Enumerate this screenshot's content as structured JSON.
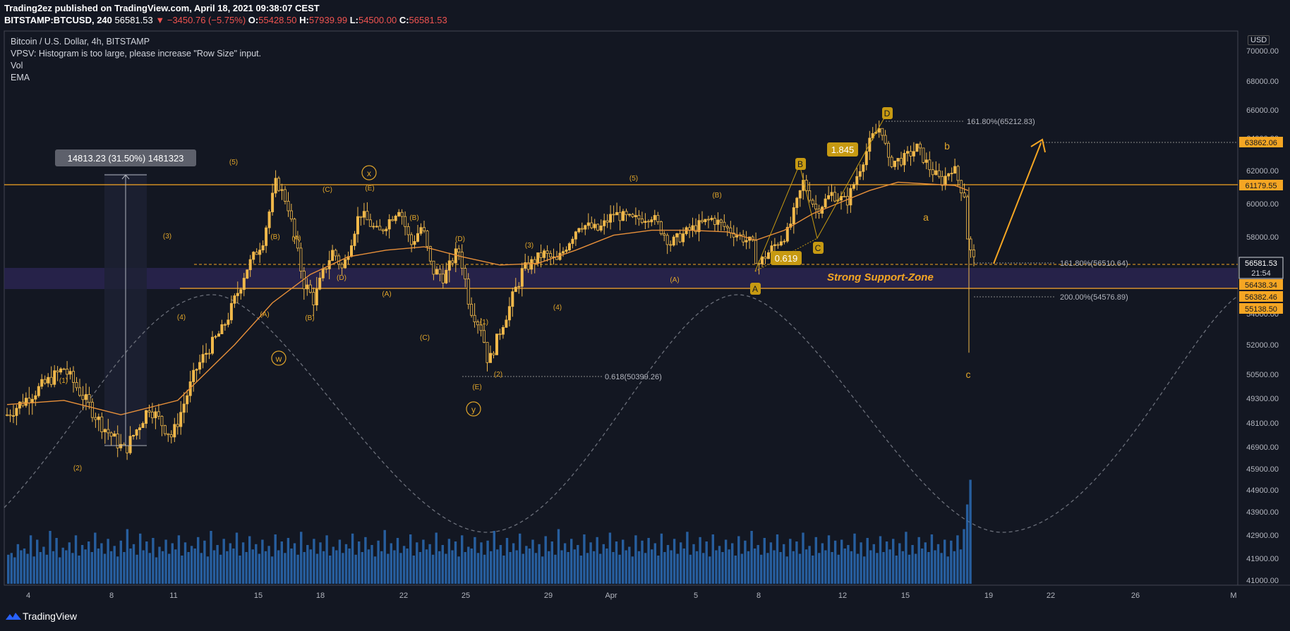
{
  "header": {
    "line1": "Trading2ez published on TradingView.com, April 18, 2021 09:38:07 CEST",
    "symbol": "BITSTAMP:BTCUSD, 240",
    "last": "56581.53",
    "change": "▼ −3450.76 (−5.75%)",
    "o_label": "O:",
    "o_val": "55428.50",
    "h_label": "H:",
    "h_val": "57939.99",
    "l_label": "L:",
    "l_val": "54500.00",
    "c_label": "C:",
    "c_val": "56581.53"
  },
  "legend": {
    "title": "Bitcoin / U.S. Dollar, 4h, BITSTAMP",
    "vpsv": "VPSV: Histogram is too large, please increase \"Row Size\" input.",
    "vol": "Vol",
    "ema": "EMA"
  },
  "currency": "USD",
  "footer": {
    "brand": "TradingView"
  },
  "colors": {
    "background": "#131722",
    "candle": "#f0b84a",
    "ema": "#e8903a",
    "volume": "#2c6bb4",
    "level": "#f5a623",
    "support_zone": "#2a2550",
    "label_bg": "#c79a12",
    "neg": "#ef5350"
  },
  "chart_data": {
    "type": "candlestick",
    "y_range": [
      40400,
      71200
    ],
    "y_ticks": [
      70000,
      68000,
      66000,
      64000,
      62000,
      60000,
      58000,
      56000,
      54000,
      52000,
      50500,
      49300,
      48100,
      46900,
      45900,
      44900,
      43900,
      42900,
      41900,
      41000
    ],
    "x_ticks": [
      "4",
      "8",
      "11",
      "15",
      "18",
      "22",
      "25",
      "29",
      "Apr",
      "5",
      "8",
      "12",
      "15",
      "19",
      "22",
      "26",
      "M"
    ],
    "price_path": [
      [
        0,
        48500
      ],
      [
        3,
        50800
      ],
      [
        5,
        48000
      ],
      [
        6.2,
        46700
      ],
      [
        7.5,
        48900
      ],
      [
        8.7,
        47400
      ],
      [
        10,
        50800
      ],
      [
        11.3,
        52900
      ],
      [
        12.5,
        55800
      ],
      [
        13.5,
        57800
      ],
      [
        14.2,
        61400
      ],
      [
        14.8,
        60000
      ],
      [
        15.6,
        55500
      ],
      [
        16.2,
        54600
      ],
      [
        17.2,
        57200
      ],
      [
        17.7,
        56000
      ],
      [
        18.6,
        59500
      ],
      [
        19.6,
        58200
      ],
      [
        20.7,
        59800
      ],
      [
        21.3,
        57500
      ],
      [
        21.9,
        58700
      ],
      [
        22.4,
        56000
      ],
      [
        23.1,
        55700
      ],
      [
        23.8,
        57300
      ],
      [
        24.4,
        54400
      ],
      [
        25.0,
        53100
      ],
      [
        25.4,
        51000
      ],
      [
        26.3,
        53800
      ],
      [
        27.2,
        56000
      ],
      [
        28.3,
        57000
      ],
      [
        29.0,
        56500
      ],
      [
        30.2,
        58800
      ],
      [
        31.2,
        58400
      ],
      [
        32.0,
        59400
      ],
      [
        33.0,
        59000
      ],
      [
        34.0,
        59300
      ],
      [
        35.0,
        57600
      ],
      [
        36.0,
        58400
      ],
      [
        37.2,
        59100
      ],
      [
        38.0,
        58500
      ],
      [
        39.3,
        57600
      ],
      [
        39.6,
        56300
      ],
      [
        40.5,
        57500
      ],
      [
        41.2,
        58300
      ],
      [
        42.0,
        61300
      ],
      [
        42.7,
        59600
      ],
      [
        43.5,
        60600
      ],
      [
        44.3,
        60100
      ],
      [
        45.0,
        62200
      ],
      [
        45.6,
        64000
      ],
      [
        46.1,
        64900
      ],
      [
        46.5,
        62500
      ],
      [
        47.3,
        62700
      ],
      [
        48.0,
        63400
      ],
      [
        48.7,
        62100
      ],
      [
        49.3,
        61300
      ],
      [
        49.9,
        62300
      ],
      [
        50.3,
        61000
      ],
      [
        50.5,
        60600
      ],
      [
        50.7,
        57500
      ],
      [
        51.0,
        56581
      ]
    ],
    "ema_path": [
      [
        0,
        49000
      ],
      [
        3,
        49200
      ],
      [
        6,
        48500
      ],
      [
        9,
        49200
      ],
      [
        12,
        52000
      ],
      [
        14,
        54500
      ],
      [
        16,
        55800
      ],
      [
        18,
        56800
      ],
      [
        20,
        57200
      ],
      [
        22,
        57400
      ],
      [
        24,
        56800
      ],
      [
        26,
        56300
      ],
      [
        28,
        56400
      ],
      [
        30,
        57200
      ],
      [
        32,
        58100
      ],
      [
        34,
        58400
      ],
      [
        36,
        58400
      ],
      [
        38,
        58300
      ],
      [
        39.5,
        57800
      ],
      [
        41,
        58400
      ],
      [
        42.5,
        59400
      ],
      [
        44,
        60100
      ],
      [
        45.5,
        60800
      ],
      [
        47,
        61300
      ],
      [
        48.5,
        61200
      ],
      [
        50,
        61100
      ],
      [
        50.7,
        60800
      ]
    ],
    "volumes": [
      33,
      35,
      30,
      45,
      38,
      40,
      34,
      55,
      31,
      50,
      36,
      42,
      33,
      60,
      37,
      52,
      30,
      41,
      38,
      47,
      35,
      55,
      32,
      44,
      39,
      48,
      36,
      58,
      40,
      46,
      34,
      51,
      37,
      43,
      31,
      49,
      36,
      62,
      40,
      45,
      33,
      57,
      38,
      48,
      35,
      52,
      30,
      42,
      37,
      50,
      34,
      46,
      39,
      55,
      32,
      47,
      36,
      43,
      40,
      53,
      35,
      49,
      31,
      60,
      38,
      44,
      33,
      51,
      37,
      46,
      40,
      58,
      32,
      47,
      36,
      54,
      39,
      45,
      34,
      50,
      37,
      43,
      31,
      56,
      38,
      48,
      35,
      52,
      40,
      46,
      33,
      59,
      36,
      44,
      39,
      51,
      34,
      47,
      37,
      55,
      32,
      42,
      38,
      50,
      35,
      45,
      40,
      57,
      33,
      48,
      36,
      53,
      39,
      44,
      31,
      49,
      37,
      61,
      34,
      46,
      38,
      52,
      35,
      43,
      40,
      56,
      32,
      47,
      36,
      50,
      39,
      45,
      33,
      58,
      37,
      44,
      34,
      51,
      38,
      48,
      31,
      55,
      36,
      42,
      40,
      53,
      35,
      47,
      33,
      49,
      37,
      60,
      39,
      44,
      32,
      52,
      36,
      46,
      38,
      57,
      34,
      43,
      40,
      50,
      35,
      45,
      31,
      54,
      37,
      48,
      33,
      62,
      38,
      46,
      36,
      51,
      39,
      44,
      32,
      56,
      35,
      47,
      37,
      53,
      34,
      45,
      40,
      58,
      36,
      48,
      33,
      50,
      38,
      42,
      31,
      55,
      37,
      49,
      35,
      52,
      39,
      46,
      32,
      57,
      36,
      44,
      38,
      51,
      34,
      47,
      40,
      59,
      33,
      45,
      37,
      53,
      35,
      48,
      31,
      56,
      38,
      43,
      36,
      50,
      39,
      46,
      32,
      54,
      34,
      49,
      37,
      60,
      40,
      44,
      33,
      52,
      35,
      47,
      38,
      56,
      36,
      45,
      31,
      51,
      37,
      48,
      34,
      58,
      39,
      43,
      32,
      53,
      35,
      46,
      38,
      55,
      36,
      49,
      33,
      50,
      40,
      44,
      37,
      57,
      34,
      47,
      31,
      52,
      38,
      45,
      35,
      54,
      36,
      48,
      39,
      51,
      32,
      46,
      37,
      59,
      33,
      44,
      34,
      53,
      40,
      47,
      36,
      56,
      38,
      45,
      35,
      50,
      31,
      49,
      37,
      55,
      39,
      62,
      90,
      118
    ]
  },
  "levels": {
    "l63862": "63862.06",
    "l61179": "61179.55",
    "l56581": "56581.53",
    "timer": "21:54",
    "l56438": "56438.34",
    "l56382": "56382.46",
    "l55138": "55138.50"
  },
  "annotations": {
    "measure": "14813.23 (31.50%) 1481323",
    "fib_top": "161.80%(65212.83)",
    "fib_mid": "161.80%(56510.64)",
    "fib_low": "200.00%(54576.89)",
    "fib_618": "0.618(50399.26)",
    "support": "Strong Support-Zone",
    "ratio1": "1.845",
    "ratio2": "0.619",
    "waves": {
      "w1": "(1)",
      "w2": "(2)",
      "w3": "(3)",
      "w4": "(4)",
      "w5": "(5)",
      "A": "(A)",
      "B": "(B)",
      "C": "(C)",
      "D": "(D)",
      "E": "(E)",
      "x": "x",
      "w": "w",
      "y": "y",
      "pA": "A",
      "pB": "B",
      "pC": "C",
      "pD": "D",
      "sa": "a",
      "sb": "b",
      "sc": "c"
    }
  }
}
